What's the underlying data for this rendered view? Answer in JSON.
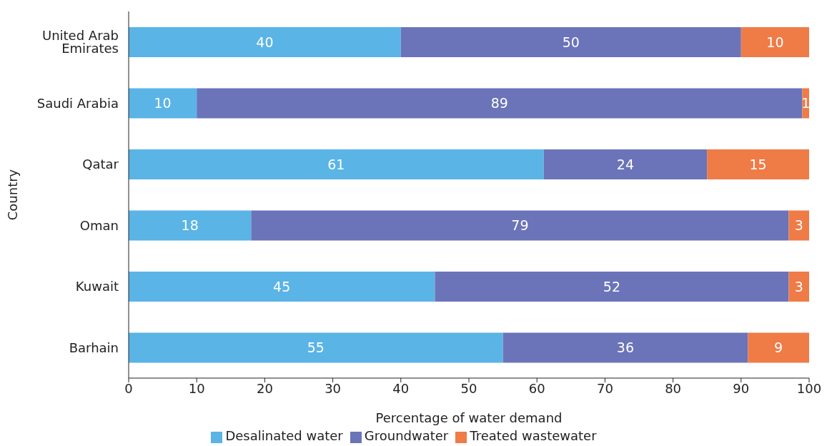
{
  "chart_data": {
    "type": "bar",
    "orientation": "horizontal",
    "stacked": true,
    "data_labels": true,
    "xlabel": "Percentage of water demand",
    "ylabel": "Country",
    "legend": "bottom",
    "categories": [
      "United Arab Emirates",
      "Saudi Arabia",
      "Qatar",
      "Oman",
      "Kuwait",
      "Barhain"
    ],
    "xlim": [
      0,
      100
    ],
    "xticks": [
      0,
      10,
      20,
      30,
      40,
      50,
      60,
      70,
      80,
      90,
      100
    ],
    "series": [
      {
        "name": "Desalinated water",
        "color": "#5ab4e6",
        "values": [
          40,
          10,
          61,
          18,
          45,
          55
        ]
      },
      {
        "name": "Groundwater",
        "color": "#6b74b9",
        "values": [
          50,
          89,
          24,
          79,
          52,
          36
        ]
      },
      {
        "name": "Treated wastewater",
        "color": "#ef7b47",
        "values": [
          10,
          1,
          15,
          3,
          3,
          9
        ]
      }
    ]
  }
}
